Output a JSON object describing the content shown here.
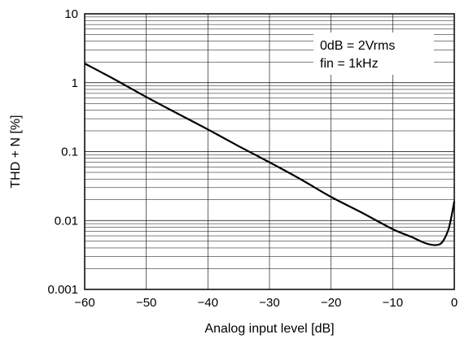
{
  "chart_data": {
    "type": "line",
    "title": "",
    "xlabel": "Analog input level [dB]",
    "ylabel": "THD + N [%]",
    "xlim": [
      -60,
      0
    ],
    "ylim": [
      0.001,
      10
    ],
    "yscale": "log",
    "grid": true,
    "x_ticks": [
      {
        "value": -60,
        "label": "−60"
      },
      {
        "value": -50,
        "label": "−50"
      },
      {
        "value": -40,
        "label": "−40"
      },
      {
        "value": -30,
        "label": "−30"
      },
      {
        "value": -20,
        "label": "−20"
      },
      {
        "value": -10,
        "label": "−10"
      },
      {
        "value": 0,
        "label": "0"
      }
    ],
    "y_ticks": [
      {
        "value": 10,
        "label": "10"
      },
      {
        "value": 1,
        "label": "1"
      },
      {
        "value": 0.1,
        "label": "0.1"
      },
      {
        "value": 0.01,
        "label": "0.01"
      },
      {
        "value": 0.001,
        "label": "0.001"
      }
    ],
    "annotations": [
      "0dB = 2Vrms",
      "fin = 1kHz"
    ],
    "series": [
      {
        "x": [
          -60,
          -55,
          -50,
          -45,
          -40,
          -35,
          -30,
          -25,
          -20,
          -15,
          -10,
          -7,
          -5,
          -4,
          -3,
          -2,
          -1,
          -0.5,
          0
        ],
        "values": [
          1.9,
          1.1,
          0.62,
          0.36,
          0.21,
          0.12,
          0.07,
          0.04,
          0.022,
          0.013,
          0.0075,
          0.0058,
          0.0048,
          0.0045,
          0.0044,
          0.0048,
          0.0072,
          0.011,
          0.019
        ]
      }
    ]
  }
}
